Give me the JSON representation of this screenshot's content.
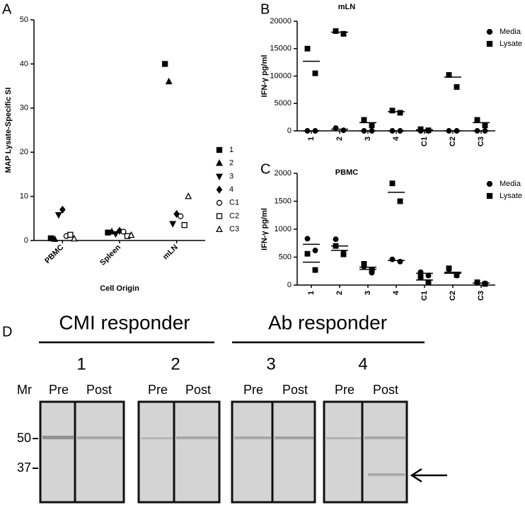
{
  "chart_data": [
    {
      "type": "scatter",
      "panel": "A",
      "ylabel": "MAP Lysate-Specific SI",
      "xlabel": "Cell Origin",
      "categories": [
        "PBMC",
        "Spleen",
        "mLN"
      ],
      "ylim": [
        0,
        50
      ],
      "yticks": [
        0,
        10,
        20,
        30,
        40,
        50
      ],
      "series": [
        {
          "name": "1",
          "marker": "square",
          "filled": true,
          "color": "#000000",
          "values": [
            0.5,
            1.8,
            40
          ]
        },
        {
          "name": "2",
          "marker": "triangle",
          "filled": true,
          "color": "#000000",
          "values": [
            0.3,
            2,
            36
          ]
        },
        {
          "name": "3",
          "marker": "triangle-down",
          "filled": true,
          "color": "#000000",
          "values": [
            5.8,
            1.5,
            3.8
          ]
        },
        {
          "name": "4",
          "marker": "diamond",
          "filled": true,
          "color": "#000000",
          "values": [
            7,
            2.2,
            6
          ]
        },
        {
          "name": "C1",
          "marker": "circle",
          "filled": false,
          "color": "#000000",
          "values": [
            1,
            2,
            5.5
          ]
        },
        {
          "name": "C2",
          "marker": "square",
          "filled": false,
          "color": "#000000",
          "values": [
            1.3,
            1,
            3.5
          ]
        },
        {
          "name": "C3",
          "marker": "triangle",
          "filled": false,
          "color": "#000000",
          "values": [
            0.4,
            1.2,
            10
          ]
        }
      ]
    },
    {
      "type": "dot",
      "panel": "B",
      "title": "mLN",
      "ylabel": "IFN-γ pg/ml",
      "categories": [
        "1",
        "2",
        "3",
        "4",
        "C1",
        "C2",
        "C3"
      ],
      "ylim": [
        0,
        20000
      ],
      "yticks": [
        0,
        5000,
        10000,
        15000,
        20000
      ],
      "series": [
        {
          "name": "Media",
          "marker": "circle",
          "color": "#000000",
          "values": [
            [
              0,
              0
            ],
            [
              500,
              100
            ],
            [
              0,
              0
            ],
            [
              0,
              0
            ],
            [
              0,
              0
            ],
            [
              0,
              0
            ],
            [
              0,
              0
            ]
          ],
          "means": [
            0,
            300,
            0,
            0,
            0,
            0,
            0
          ]
        },
        {
          "name": "Lysate",
          "marker": "square",
          "color": "#000000",
          "values": [
            [
              15000,
              10500
            ],
            [
              18200,
              17700
            ],
            [
              2000,
              1000
            ],
            [
              3700,
              3300
            ],
            [
              300,
              100
            ],
            [
              10200,
              8000
            ],
            [
              2000,
              1000
            ]
          ],
          "means": [
            12700,
            18000,
            1500,
            3500,
            200,
            9800,
            1500
          ]
        }
      ]
    },
    {
      "type": "dot",
      "panel": "C",
      "title": "PBMC",
      "ylabel": "IFN-γ pg/ml",
      "categories": [
        "1",
        "2",
        "3",
        "4",
        "C1",
        "C2",
        "C3"
      ],
      "ylim": [
        0,
        2000
      ],
      "yticks": [
        0,
        500,
        1000,
        1500,
        2000
      ],
      "series": [
        {
          "name": "Media",
          "marker": "circle",
          "color": "#000000",
          "values": [
            [
              830,
              620
            ],
            [
              820,
              580
            ],
            [
              330,
              220
            ],
            [
              460,
              420
            ],
            [
              230,
              170
            ],
            [
              280,
              170
            ],
            [
              40,
              30
            ]
          ],
          "means": [
            730,
            700,
            280,
            440,
            210,
            210,
            35
          ]
        },
        {
          "name": "Lysate",
          "marker": "square",
          "color": "#000000",
          "values": [
            [
              560,
              270
            ],
            [
              700,
              550
            ],
            [
              380,
              260
            ],
            [
              1820,
              1500
            ],
            [
              150,
              50
            ],
            [
              300,
              180
            ],
            [
              50,
              20
            ]
          ],
          "means": [
            410,
            620,
            320,
            1660,
            90,
            230,
            35
          ]
        }
      ]
    }
  ],
  "blot": {
    "panel": "D",
    "mr_label": "Mr",
    "size_markers": [
      50,
      37
    ],
    "groups": [
      {
        "label": "CMI responder",
        "animals": [
          {
            "label": "1",
            "lanes": [
              "Pre",
              "Post"
            ]
          },
          {
            "label": "2",
            "lanes": [
              "Pre",
              "Post"
            ]
          }
        ]
      },
      {
        "label": "Ab responder",
        "animals": [
          {
            "label": "3",
            "lanes": [
              "Pre",
              "Post"
            ]
          },
          {
            "label": "4",
            "lanes": [
              "Pre",
              "Post"
            ]
          }
        ]
      }
    ]
  }
}
